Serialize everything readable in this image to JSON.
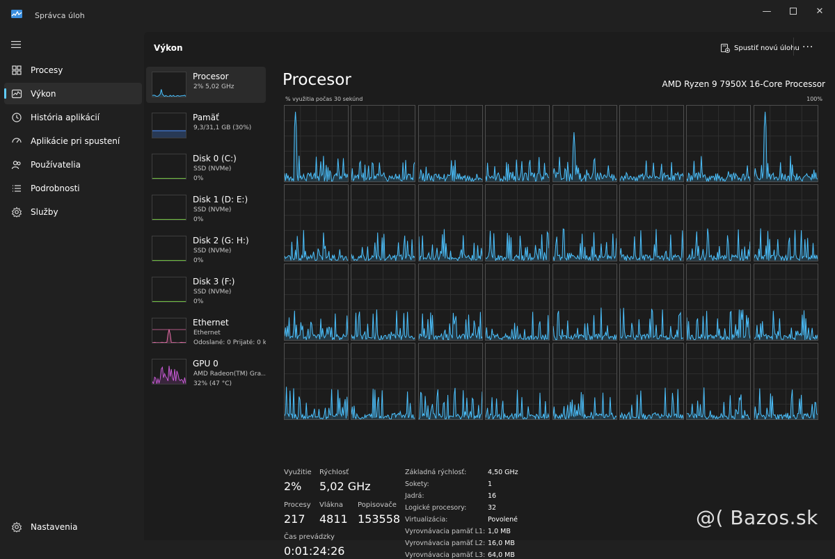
{
  "app": {
    "title": "Správca úloh"
  },
  "nav": {
    "items": [
      {
        "label": "Procesy",
        "icon": "grid-icon",
        "active": false
      },
      {
        "label": "Výkon",
        "icon": "performance-icon",
        "active": true
      },
      {
        "label": "História aplikácií",
        "icon": "history-icon",
        "active": false
      },
      {
        "label": "Aplikácie pri spustení",
        "icon": "startup-icon",
        "active": false
      },
      {
        "label": "Používatelia",
        "icon": "users-icon",
        "active": false
      },
      {
        "label": "Podrobnosti",
        "icon": "details-icon",
        "active": false
      },
      {
        "label": "Služby",
        "icon": "services-icon",
        "active": false
      }
    ],
    "settings_label": "Nastavenia"
  },
  "header": {
    "title": "Výkon",
    "new_task_label": "Spustiť novú úlohu",
    "more_label": "···"
  },
  "devices": [
    {
      "name": "Procesor",
      "sub1": "2%  5,02 GHz",
      "sub2": "",
      "sub3": "",
      "graph_color": "#4cc2ff"
    },
    {
      "name": "Pamäť",
      "sub1": "9,3/31,1 GB (30%)",
      "sub2": "",
      "sub3": "",
      "graph_color": "#4c8fff"
    },
    {
      "name": "Disk 0 (C:)",
      "sub1": "SSD (NVMe)",
      "sub2": "0%",
      "sub3": "",
      "graph_color": "#6cbb3c"
    },
    {
      "name": "Disk 1 (D: E:)",
      "sub1": "SSD (NVMe)",
      "sub2": "0%",
      "sub3": "",
      "graph_color": "#6cbb3c"
    },
    {
      "name": "Disk 2 (G: H:)",
      "sub1": "SSD (NVMe)",
      "sub2": "0%",
      "sub3": "",
      "graph_color": "#6cbb3c"
    },
    {
      "name": "Disk 3 (F:)",
      "sub1": "SSD (NVMe)",
      "sub2": "0%",
      "sub3": "",
      "graph_color": "#6cbb3c"
    },
    {
      "name": "Ethernet",
      "sub1": "Ethernet",
      "sub2": "Odoslané: 0 Prijaté: 0 k",
      "sub3": "",
      "graph_color": "#e36ca6"
    },
    {
      "name": "GPU 0",
      "sub1": "AMD Radeon(TM) Gra...",
      "sub2": "32%  (47 °C)",
      "sub3": "",
      "graph_color": "#c85ad6"
    }
  ],
  "cpu": {
    "title": "Procesor",
    "model": "AMD Ryzen 9 7950X 16-Core Processor",
    "util_label": "% využitia počas 30 sekúnd",
    "util_max": "100%",
    "graph_color": "#4cc2ff",
    "core_count": 32
  },
  "stats": {
    "util_label": "Využitie",
    "util_value": "2%",
    "speed_label": "Rýchlosť",
    "speed_value": "5,02 GHz",
    "proc_label": "Procesy",
    "proc_value": "217",
    "threads_label": "Vlákna",
    "threads_value": "4811",
    "handles_label": "Popisovače",
    "handles_value": "153558",
    "uptime_label": "Čas prevádzky",
    "uptime_value": "0:01:24:26"
  },
  "info": [
    {
      "k": "Základná rýchlosť:",
      "v": "4,50 GHz"
    },
    {
      "k": "Sokety:",
      "v": "1"
    },
    {
      "k": "Jadrá:",
      "v": "16"
    },
    {
      "k": "Logické procesory:",
      "v": "32"
    },
    {
      "k": "Virtualizácia:",
      "v": "Povolené"
    },
    {
      "k": "Vyrovnávacia pamäť L1:",
      "v": "1,0 MB"
    },
    {
      "k": "Vyrovnávacia pamäť L2:",
      "v": "16,0 MB"
    },
    {
      "k": "Vyrovnávacia pamäť L3:",
      "v": "64,0 MB"
    }
  ],
  "watermark": "@( Bazos.sk"
}
